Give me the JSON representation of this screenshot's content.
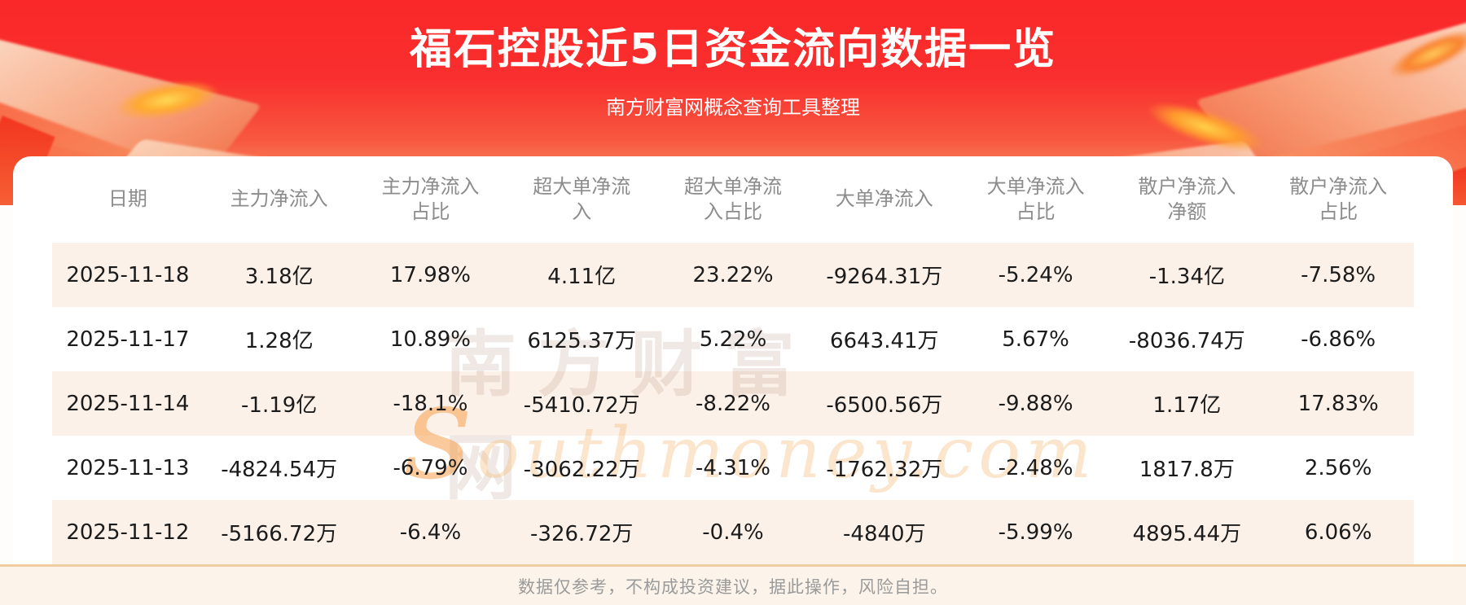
{
  "header": {
    "title": "福石控股近5日资金流向数据一览",
    "subtitle": "南方财富网概念查询工具整理"
  },
  "table_display": {
    "headers": [
      "日期",
      "主力净流入",
      "主力净流入\n占比",
      "超大单净流\n入",
      "超大单净流\n入占比",
      "大单净流入",
      "大单净流入\n占比",
      "散户净流入\n净额",
      "散户净流入\n占比"
    ]
  },
  "chart_data": {
    "type": "table",
    "title": "福石控股近5日资金流向数据一览",
    "subtitle": "南方财富网概念查询工具整理",
    "columns": [
      "日期",
      "主力净流入",
      "主力净流入占比",
      "超大单净流入",
      "超大单净流入占比",
      "大单净流入",
      "大单净流入占比",
      "散户净流入净额",
      "散户净流入占比"
    ],
    "rows": [
      [
        "2025-11-18",
        "3.18亿",
        "17.98%",
        "4.11亿",
        "23.22%",
        "-9264.31万",
        "-5.24%",
        "-1.34亿",
        "-7.58%"
      ],
      [
        "2025-11-17",
        "1.28亿",
        "10.89%",
        "6125.37万",
        "5.22%",
        "6643.41万",
        "5.67%",
        "-8036.74万",
        "-6.86%"
      ],
      [
        "2025-11-14",
        "-1.19亿",
        "-18.1%",
        "-5410.72万",
        "-8.22%",
        "-6500.56万",
        "-9.88%",
        "1.17亿",
        "17.83%"
      ],
      [
        "2025-11-13",
        "-4824.54万",
        "-6.79%",
        "-3062.22万",
        "-4.31%",
        "-1762.32万",
        "-2.48%",
        "1817.8万",
        "2.56%"
      ],
      [
        "2025-11-12",
        "-5166.72万",
        "-6.4%",
        "-326.72万",
        "-0.4%",
        "-4840万",
        "-5.99%",
        "4895.44万",
        "6.06%"
      ]
    ]
  },
  "watermark": {
    "brand": "南方财富网",
    "domain": "southmoney.com"
  },
  "footer": {
    "disclaimer": "数据仅参考，不构成投资建议，据此操作，风险自担。"
  },
  "colors": {
    "hero_red_top": "#fa2828",
    "hero_orange_bottom": "#f9a87d",
    "row_stripe": "#fcf1e8",
    "divider_tan": "#f0cda0",
    "header_text": "#8c8c8c",
    "cell_text": "#1b1b1b",
    "title_text": "#ffffff"
  }
}
